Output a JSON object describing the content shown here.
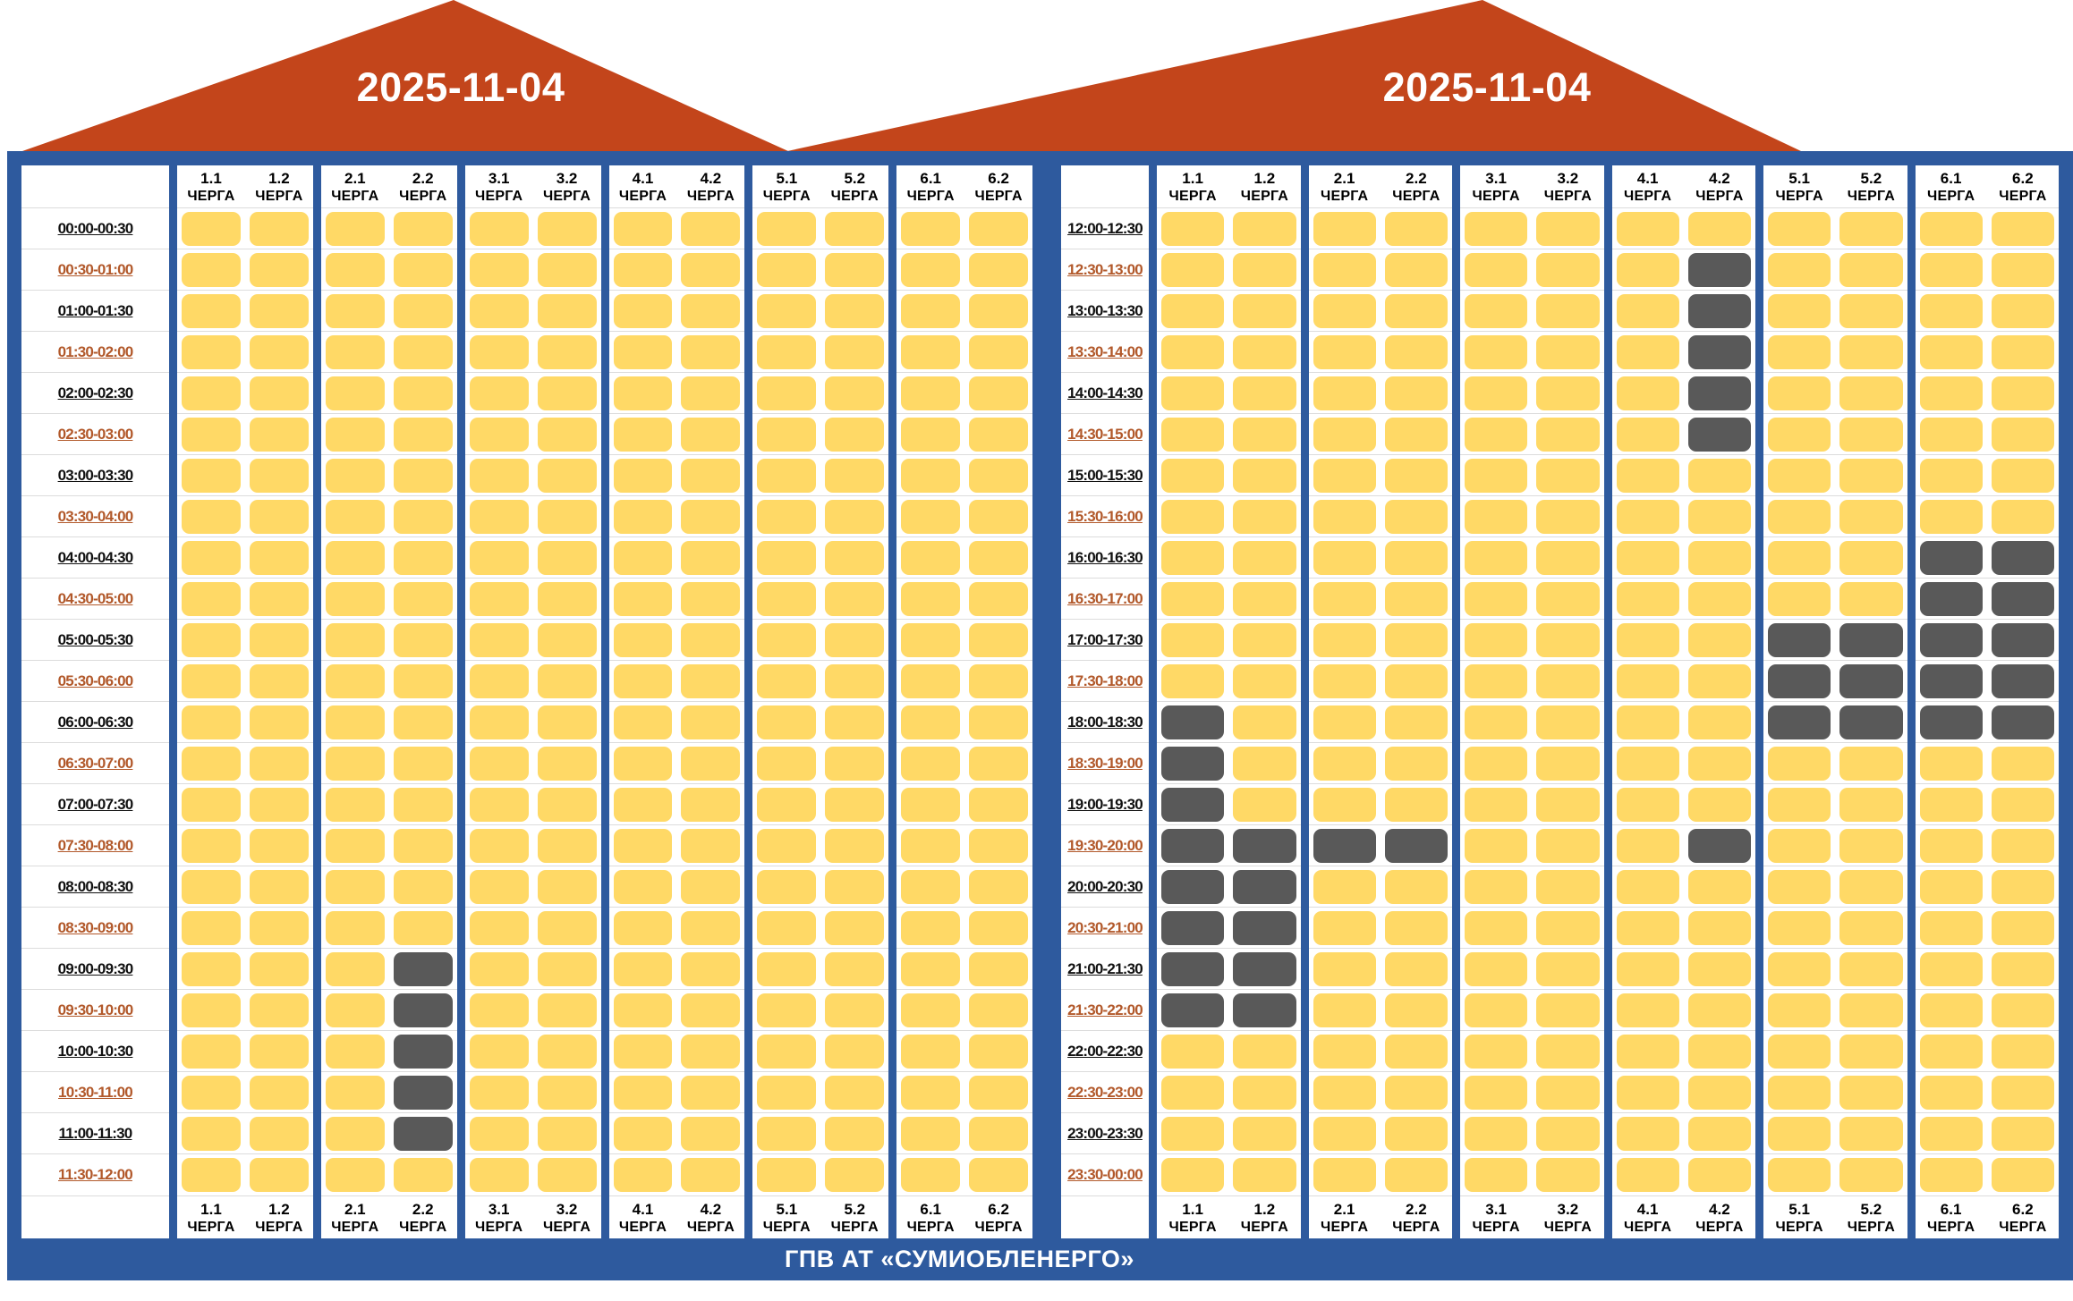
{
  "header": {
    "date_left": "2025-11-04",
    "date_right": "2025-11-04"
  },
  "footer": {
    "title": "ГПВ АТ «СУМИОБЛЕНЕРГО»"
  },
  "queue_suffix": "ЧЕРГА",
  "queues": [
    "1.1",
    "1.2",
    "2.1",
    "2.2",
    "3.1",
    "3.2",
    "4.1",
    "4.2",
    "5.1",
    "5.2",
    "6.1",
    "6.2"
  ],
  "colors": {
    "power_on": "#FFD966",
    "power_off": "#595959",
    "frame_blue": "#2E5A9E",
    "roof_orange": "#C3451B",
    "time_label_black": "#111111",
    "time_label_brown": "#B2592B",
    "row_line": "#DCDCDC"
  },
  "legend_note": "yellow cell = power on, dark gray cell = scheduled outage",
  "chart_data": [
    {
      "type": "heatmap",
      "title": "2025-11-04",
      "panel": "00:00-12:00",
      "columns": [
        "1.1",
        "1.2",
        "2.1",
        "2.2",
        "3.1",
        "3.2",
        "4.1",
        "4.2",
        "5.1",
        "5.2",
        "6.1",
        "6.2"
      ],
      "rows": [
        "00:00-00:30",
        "00:30-01:00",
        "01:00-01:30",
        "01:30-02:00",
        "02:00-02:30",
        "02:30-03:00",
        "03:00-03:30",
        "03:30-04:00",
        "04:00-04:30",
        "04:30-05:00",
        "05:00-05:30",
        "05:30-06:00",
        "06:00-06:30",
        "06:30-07:00",
        "07:00-07:30",
        "07:30-08:00",
        "08:00-08:30",
        "08:30-09:00",
        "09:00-09:30",
        "09:30-10:00",
        "10:00-10:30",
        "10:30-11:00",
        "11:00-11:30",
        "11:30-12:00"
      ],
      "off_cells": {
        "2.2": [
          18,
          19,
          20,
          21,
          22
        ]
      }
    },
    {
      "type": "heatmap",
      "title": "2025-11-04",
      "panel": "12:00-00:00",
      "columns": [
        "1.1",
        "1.2",
        "2.1",
        "2.2",
        "3.1",
        "3.2",
        "4.1",
        "4.2",
        "5.1",
        "5.2",
        "6.1",
        "6.2"
      ],
      "rows": [
        "12:00-12:30",
        "12:30-13:00",
        "13:00-13:30",
        "13:30-14:00",
        "14:00-14:30",
        "14:30-15:00",
        "15:00-15:30",
        "15:30-16:00",
        "16:00-16:30",
        "16:30-17:00",
        "17:00-17:30",
        "17:30-18:00",
        "18:00-18:30",
        "18:30-19:00",
        "19:00-19:30",
        "19:30-20:00",
        "20:00-20:30",
        "20:30-21:00",
        "21:00-21:30",
        "21:30-22:00",
        "22:00-22:30",
        "22:30-23:00",
        "23:00-23:30",
        "23:30-00:00"
      ],
      "off_cells": {
        "1.1": [
          12,
          13,
          14,
          15,
          16,
          17,
          18,
          19
        ],
        "1.2": [
          15,
          16,
          17,
          18,
          19
        ],
        "2.1": [
          15
        ],
        "2.2": [
          15
        ],
        "4.2": [
          1,
          2,
          3,
          4,
          5,
          15
        ],
        "5.1": [
          10,
          11,
          12
        ],
        "5.2": [
          10,
          11,
          12
        ],
        "6.1": [
          8,
          9,
          10,
          11,
          12
        ],
        "6.2": [
          8,
          9,
          10,
          11,
          12
        ]
      }
    }
  ]
}
